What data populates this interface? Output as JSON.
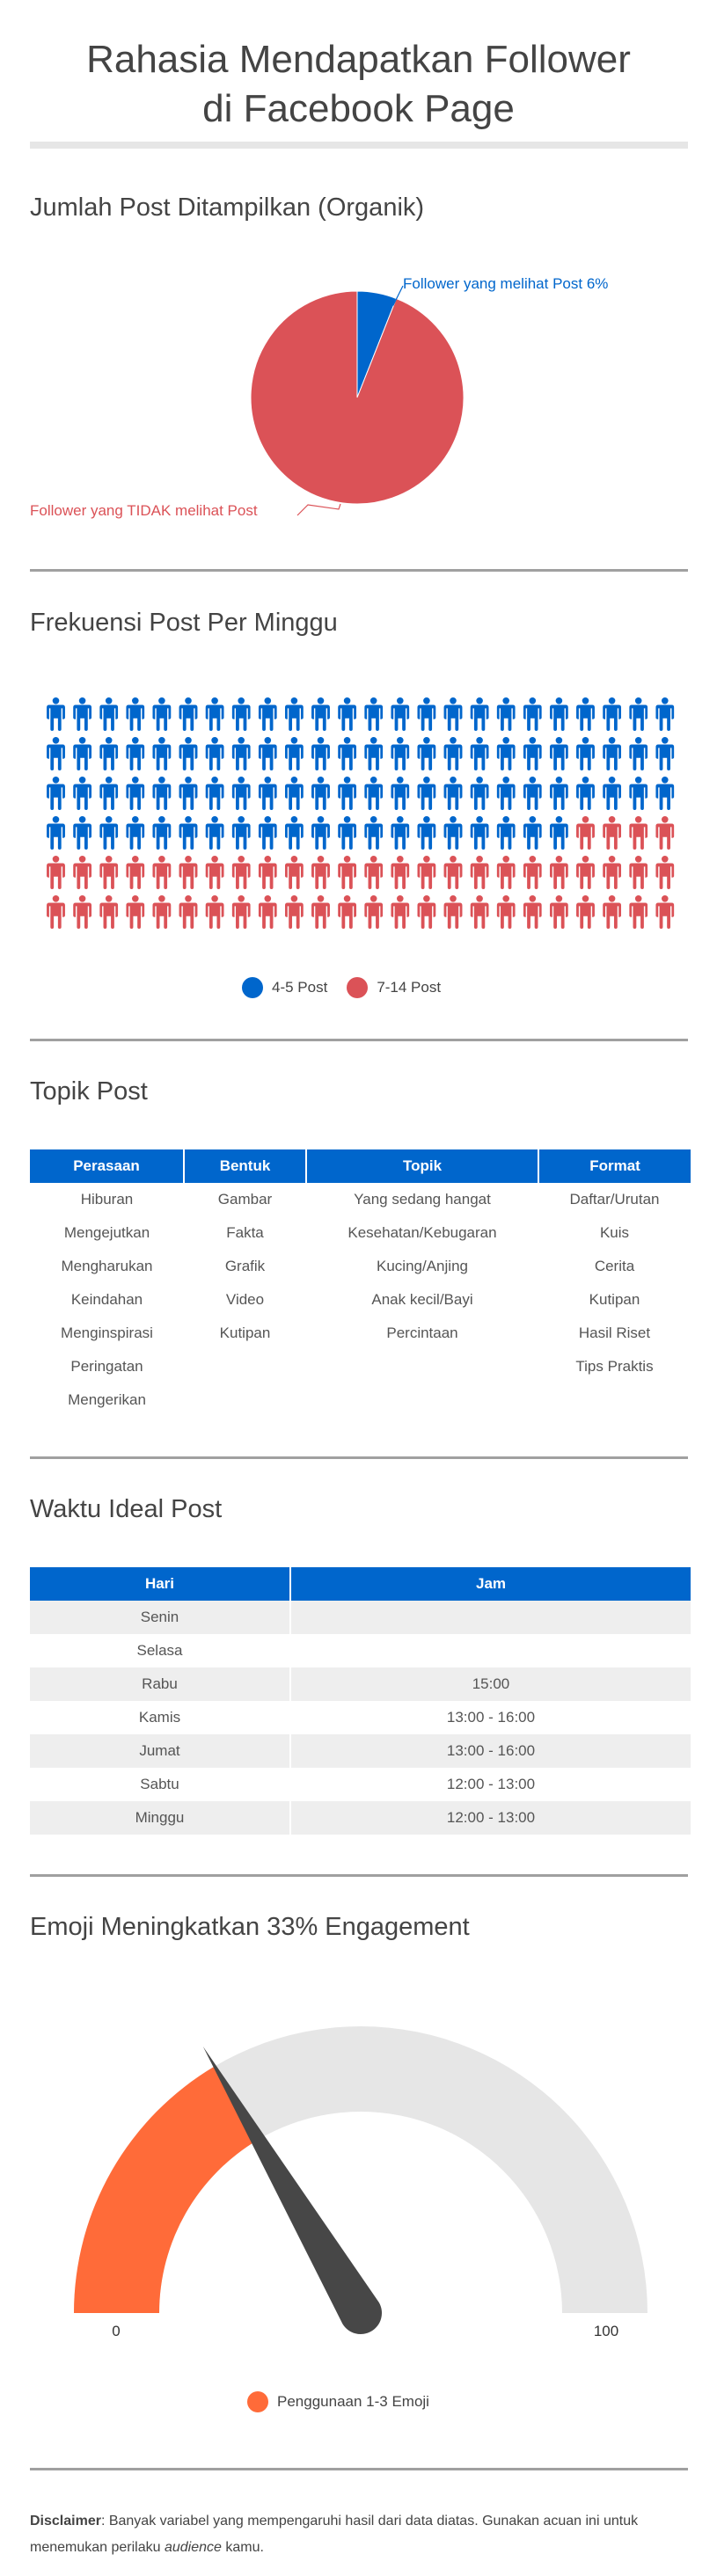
{
  "header": {
    "title_line1": "Rahasia Mendapatkan Follower",
    "title_line2": "di Facebook Page"
  },
  "colors": {
    "blue": "#0066cc",
    "red": "#db5257",
    "orange": "#ff6b39",
    "gauge_track": "#e6e6e6",
    "needle": "#474747"
  },
  "chart_data": [
    {
      "type": "pie",
      "title": "Jumlah Post Ditampilkan (Organik)",
      "slices": [
        {
          "label": "Follower yang melihat Post 6%",
          "value": 6,
          "color": "#0066cc"
        },
        {
          "label": "Follower yang TIDAK melihat Post",
          "value": 94,
          "color": "#db5257"
        }
      ]
    },
    {
      "type": "pictograph",
      "title": "Frekuensi Post Per Minggu",
      "icon": "person-icon",
      "columns": 24,
      "series": [
        {
          "name": "4-5 Post",
          "value": 92,
          "color": "#0066cc"
        },
        {
          "name": "7-14 Post",
          "value": 52,
          "color": "#db5257"
        }
      ],
      "legend": "bottom"
    },
    {
      "type": "gauge",
      "title": "Emoji Meningkatkan 33% Engagement",
      "min": 0,
      "max": 100,
      "value": 33,
      "min_label": "0",
      "max_label": "100",
      "series_name": "Penggunaan 1-3 Emoji",
      "legend": "bottom"
    }
  ],
  "topics": {
    "title": "Topik Post",
    "headers": [
      "Perasaan",
      "Bentuk",
      "Topik",
      "Format"
    ],
    "rows": [
      [
        "Hiburan",
        "Gambar",
        "Yang sedang hangat",
        "Daftar/Urutan"
      ],
      [
        "Mengejutkan",
        "Fakta",
        "Kesehatan/Kebugaran",
        "Kuis"
      ],
      [
        "Mengharukan",
        "Grafik",
        "Kucing/Anjing",
        "Cerita"
      ],
      [
        "Keindahan",
        "Video",
        "Anak kecil/Bayi",
        "Kutipan"
      ],
      [
        "Menginspirasi",
        "Kutipan",
        "Percintaan",
        "Hasil Riset"
      ],
      [
        "Peringatan",
        "",
        "",
        "Tips Praktis"
      ],
      [
        "Mengerikan",
        "",
        "",
        ""
      ]
    ]
  },
  "schedule": {
    "title": "Waktu Ideal Post",
    "headers": [
      "Hari",
      "Jam"
    ],
    "rows": [
      [
        "Senin",
        ""
      ],
      [
        "Selasa",
        ""
      ],
      [
        "Rabu",
        "15:00"
      ],
      [
        "Kamis",
        "13:00 - 16:00"
      ],
      [
        "Jumat",
        "13:00 - 16:00"
      ],
      [
        "Sabtu",
        "12:00 - 13:00"
      ],
      [
        "Minggu",
        "12:00 - 13:00"
      ]
    ]
  },
  "disclaimer": {
    "label": "Disclaimer",
    "text_before": ": Banyak variabel yang mempengaruhi hasil dari data diatas. Gunakan acuan ini untuk menemukan perilaku ",
    "italic": "audience",
    "text_after": " kamu."
  }
}
